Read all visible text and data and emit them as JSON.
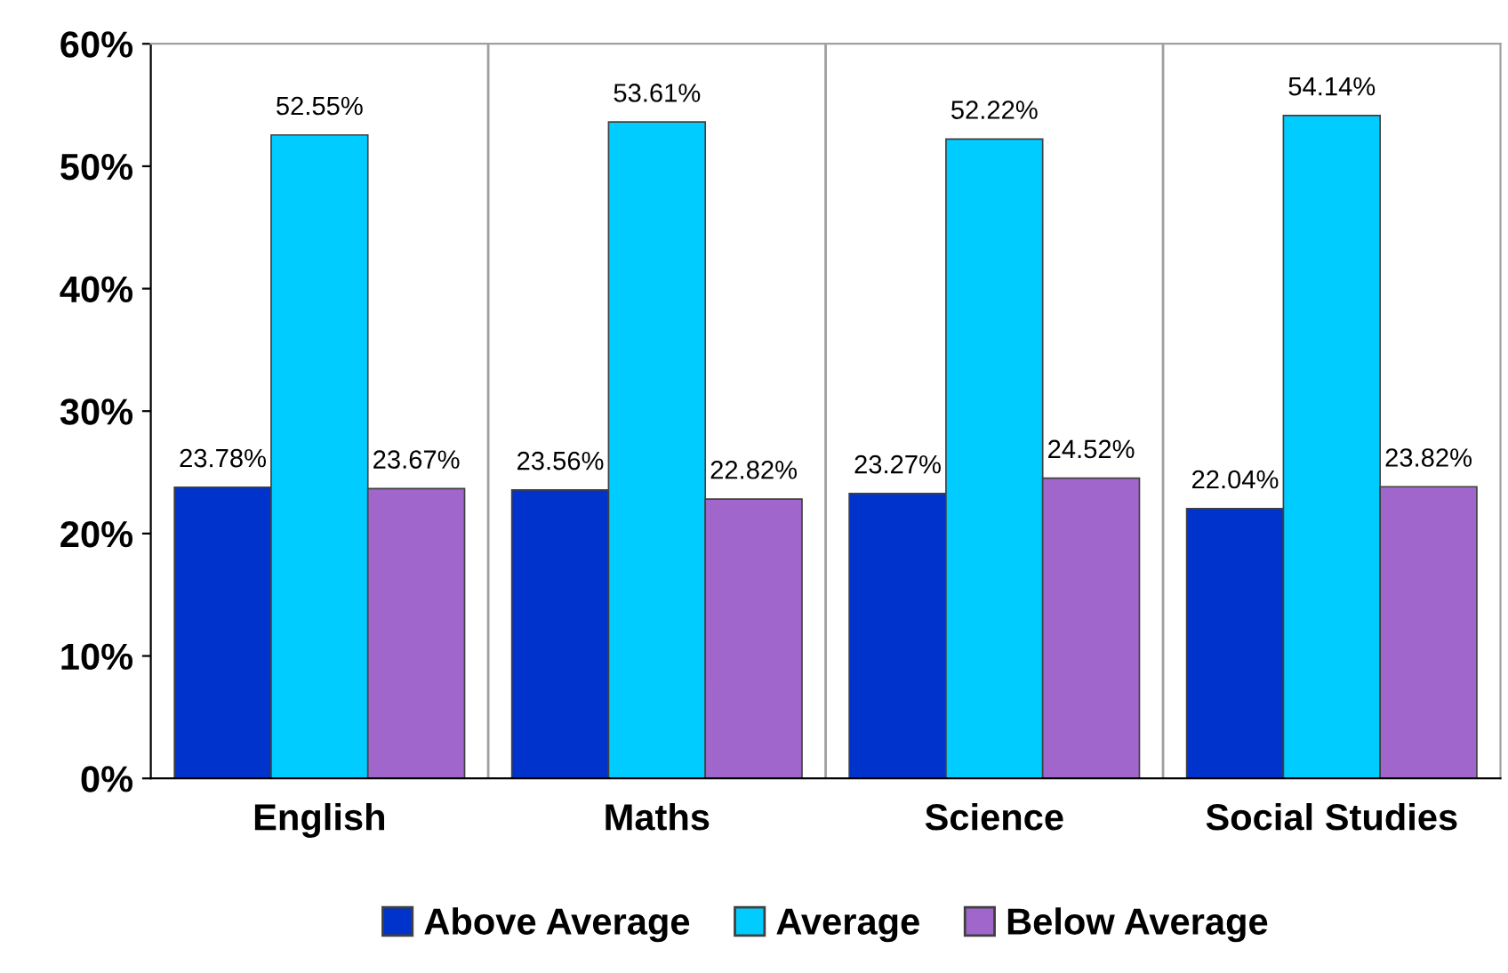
{
  "chart_data": {
    "type": "bar",
    "categories": [
      "English",
      "Maths",
      "Science",
      "Social Studies"
    ],
    "series": [
      {
        "name": "Above Average",
        "color": "#0033cc",
        "values": [
          23.78,
          23.56,
          23.27,
          22.04
        ],
        "value_labels": [
          "23.78%",
          "23.56%",
          "23.27%",
          "22.04%"
        ]
      },
      {
        "name": "Average",
        "color": "#00ccff",
        "values": [
          52.55,
          53.61,
          52.22,
          54.14
        ],
        "value_labels": [
          "52.55%",
          "53.61%",
          "52.22%",
          "54.14%"
        ]
      },
      {
        "name": "Below Average",
        "color": "#a066cc",
        "values": [
          23.67,
          22.82,
          24.52,
          23.82
        ],
        "value_labels": [
          "23.67%",
          "22.82%",
          "24.52%",
          "23.82%"
        ]
      }
    ],
    "ylim": [
      0,
      60
    ],
    "yticks": [
      {
        "value": 0,
        "label": "0%"
      },
      {
        "value": 10,
        "label": "10%"
      },
      {
        "value": 20,
        "label": "20%"
      },
      {
        "value": 30,
        "label": "30%"
      },
      {
        "value": 40,
        "label": "40%"
      },
      {
        "value": 50,
        "label": "50%"
      },
      {
        "value": 60,
        "label": "60%"
      }
    ],
    "grid": "x",
    "legend": "bottom"
  }
}
